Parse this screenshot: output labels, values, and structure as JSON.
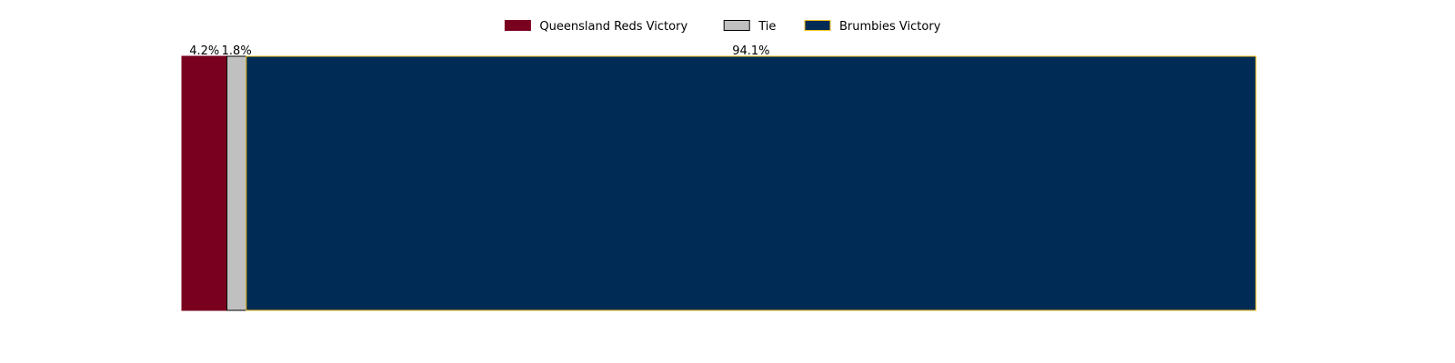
{
  "chart_data": {
    "type": "bar",
    "orientation": "horizontal",
    "stacked": true,
    "title": "",
    "xlabel": "",
    "ylabel": "",
    "axes_visible": false,
    "grid": false,
    "legend_position": "top-center",
    "series": [
      {
        "name": "Queensland Reds Victory",
        "value": 4.2,
        "label": "4.2%",
        "color": "#7a001f",
        "edge_color": "#7a001f"
      },
      {
        "name": "Tie",
        "value": 1.8,
        "label": "1.8%",
        "color": "#c0c0c0",
        "edge_color": "#000000"
      },
      {
        "name": "Brumbies Victory",
        "value": 94.1,
        "label": "94.1%",
        "color": "#002b54",
        "edge_color": "#f4c21c"
      }
    ]
  }
}
